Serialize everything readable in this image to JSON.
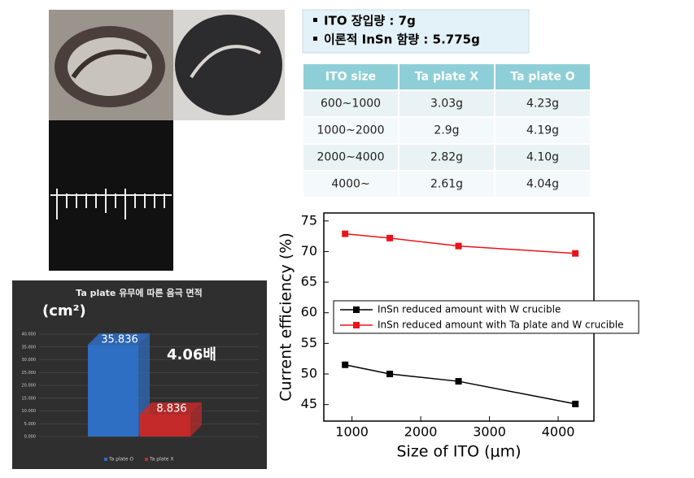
{
  "notes": [
    "ITO 장입량 : 7g",
    "이론적 InSn 함량 : 5.775g"
  ],
  "table": {
    "header": [
      "ITO size",
      "Ta plate X",
      "Ta plate O"
    ],
    "rows": [
      [
        "600~1000",
        "3.03g",
        "4.23g"
      ],
      [
        "1000~2000",
        "2.9g",
        "4.19g"
      ],
      [
        "2000~4000",
        "2.82g",
        "4.10g"
      ],
      [
        "4000~",
        "2.61g",
        "4.04g"
      ]
    ]
  },
  "chart_data": [
    {
      "type": "line",
      "xlabel": "Size of ITO (μm)",
      "ylabel": "Current efficiency (%)",
      "x": [
        900,
        1550,
        2550,
        4250
      ],
      "series": [
        {
          "name": "InSn reduced amount with W crucible",
          "color": "#000000",
          "values": [
            51.5,
            50.0,
            48.8,
            45.1
          ]
        },
        {
          "name": "InSn reduced amount with Ta plate and W crucible",
          "color": "#e8141b",
          "values": [
            72.9,
            72.2,
            70.9,
            69.7
          ]
        }
      ],
      "xlim": [
        590,
        4520
      ],
      "ylim": [
        42.3,
        76.3
      ],
      "xticks": [
        1000,
        2000,
        3000,
        4000
      ],
      "yticks": [
        45,
        50,
        55,
        60,
        65,
        70,
        75
      ]
    },
    {
      "type": "bar3d",
      "title": "Ta plate 유무에 따른 음극 면적",
      "unit_label": "(cm²)",
      "annotation": "4.06배",
      "series": [
        {
          "name": "Ta plate O",
          "color": "#2e6fc4",
          "values": [
            35.836
          ]
        },
        {
          "name": "Ta plate X",
          "color": "#c42a2a",
          "values": [
            8.836
          ]
        }
      ],
      "ylim": [
        0,
        40
      ],
      "yticks": [
        {
          "value": 0,
          "label": "0.000"
        },
        {
          "value": 5,
          "label": "5.000"
        },
        {
          "value": 10,
          "label": "10.000"
        },
        {
          "value": 15,
          "label": "15.000"
        },
        {
          "value": 20,
          "label": "20.000"
        },
        {
          "value": 25,
          "label": "25.000"
        },
        {
          "value": 30,
          "label": "30.000"
        },
        {
          "value": 35,
          "label": "35.000"
        },
        {
          "value": 40,
          "label": "40.000"
        }
      ],
      "grid": true
    }
  ]
}
